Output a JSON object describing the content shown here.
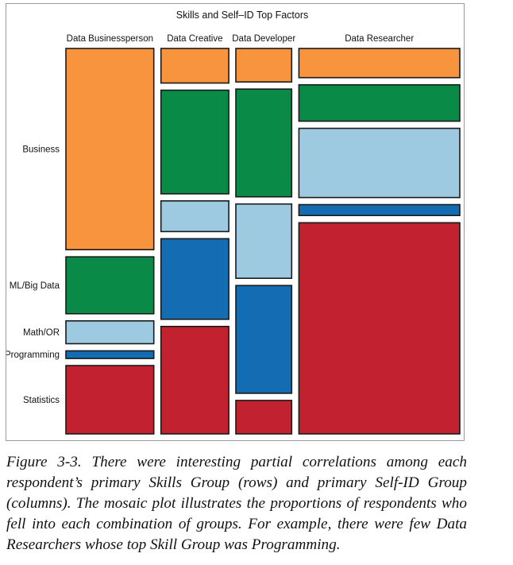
{
  "chart_data": {
    "type": "mosaic",
    "title": "Skills and Self–ID Top Factors",
    "columns": [
      "Data Businessperson",
      "Data Creative",
      "Data Developer",
      "Data Researcher"
    ],
    "column_shares": [
      0.236,
      0.182,
      0.15,
      0.432
    ],
    "rows": [
      {
        "name": "Business",
        "color": "#f7943d"
      },
      {
        "name": "ML/Big Data",
        "color": "#0a8a47"
      },
      {
        "name": "Math/OR",
        "color": "#9dc9e1"
      },
      {
        "name": "Programming",
        "color": "#146db2"
      },
      {
        "name": "Statistics",
        "color": "#c22130"
      }
    ],
    "row_label_reference_column": "Data Businessperson",
    "values": [
      [
        0.53,
        0.15,
        0.06,
        0.02,
        0.18
      ],
      [
        0.09,
        0.27,
        0.08,
        0.21,
        0.28
      ],
      [
        0.09,
        0.29,
        0.2,
        0.29,
        0.09
      ],
      [
        0.08,
        0.1,
        0.19,
        0.03,
        0.58
      ]
    ]
  },
  "caption": "Figure 3-3. There were interesting partial correlations among each respondent’s primary Skills Group (rows) and primary Self-ID Group (columns). The mosaic plot illustrates the proportions of respondents who fell into each combination of groups. For example, there were few Data Researchers whose top Skill Group was Programming."
}
